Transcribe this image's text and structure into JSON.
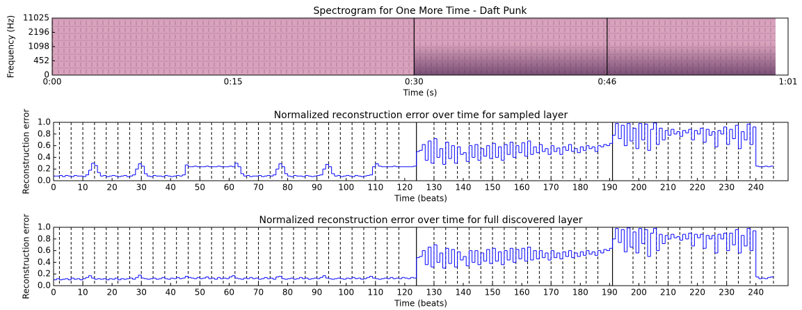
{
  "chart_data": [
    {
      "type": "spectrogram",
      "title": "Spectrogram for One More Time - Daft Punk",
      "xlabel": "Time (s)",
      "ylabel": "Frequency (Hz)",
      "xlim": [
        0,
        61
      ],
      "xticks": [
        {
          "value": 0,
          "label": "0:00"
        },
        {
          "value": 15,
          "label": "0:15"
        },
        {
          "value": 30,
          "label": "0:30"
        },
        {
          "value": 46,
          "label": "0:46"
        },
        {
          "value": 61,
          "label": "1:01"
        }
      ],
      "yticks": [
        0,
        452,
        1098,
        2196,
        11025
      ],
      "markers": [
        30,
        46
      ],
      "color": "#d9a3bd"
    },
    {
      "type": "step",
      "title": "Normalized reconstruction error over time for sampled layer",
      "xlabel": "Time (beats)",
      "ylabel": "Reconstruction error",
      "xlim": [
        0,
        251
      ],
      "ylim": [
        0,
        1
      ],
      "xticks": [
        0,
        10,
        20,
        30,
        40,
        50,
        60,
        70,
        80,
        90,
        100,
        110,
        120,
        130,
        140,
        150,
        160,
        170,
        180,
        190,
        200,
        210,
        220,
        230,
        240
      ],
      "yticks": [
        {
          "value": 0,
          "label": "0.0"
        },
        {
          "value": 0.2,
          "label": "0.2"
        },
        {
          "value": 0.4,
          "label": "0.4"
        },
        {
          "value": 0.6,
          "label": "0.6"
        },
        {
          "value": 0.8,
          "label": "0.8"
        },
        {
          "value": 1,
          "label": "1.0"
        }
      ],
      "markers": [
        124,
        191
      ],
      "dashed_lines": [
        2,
        6,
        10,
        14,
        18,
        22,
        26,
        30,
        34,
        38,
        42,
        46,
        50,
        54,
        58,
        62,
        66,
        70,
        74,
        78,
        82,
        86,
        90,
        94,
        98,
        102,
        106,
        110,
        114,
        118,
        130,
        134,
        138,
        142,
        146,
        150,
        154,
        158,
        162,
        166,
        170,
        174,
        178,
        182,
        186,
        198,
        202,
        206,
        210,
        214,
        218,
        222,
        226,
        230,
        234,
        238,
        242,
        246
      ],
      "color": "#0000ff",
      "x": [
        0,
        1,
        2,
        3,
        4,
        5,
        6,
        7,
        8,
        9,
        10,
        11,
        12,
        13,
        14,
        15,
        16,
        17,
        18,
        19,
        20,
        21,
        22,
        23,
        24,
        25,
        26,
        27,
        28,
        29,
        30,
        31,
        32,
        33,
        34,
        35,
        36,
        37,
        38,
        39,
        40,
        41,
        42,
        43,
        44,
        45,
        46,
        47,
        48,
        49,
        50,
        51,
        52,
        53,
        54,
        55,
        56,
        57,
        58,
        59,
        60,
        61,
        62,
        63,
        64,
        65,
        66,
        67,
        68,
        69,
        70,
        71,
        72,
        73,
        74,
        75,
        76,
        77,
        78,
        79,
        80,
        81,
        82,
        83,
        84,
        85,
        86,
        87,
        88,
        89,
        90,
        91,
        92,
        93,
        94,
        95,
        96,
        97,
        98,
        99,
        100,
        101,
        102,
        103,
        104,
        105,
        106,
        107,
        108,
        109,
        110,
        111,
        112,
        113,
        114,
        115,
        116,
        117,
        118,
        119,
        120,
        121,
        122,
        123,
        124,
        125,
        126,
        127,
        128,
        129,
        130,
        131,
        132,
        133,
        134,
        135,
        136,
        137,
        138,
        139,
        140,
        141,
        142,
        143,
        144,
        145,
        146,
        147,
        148,
        149,
        150,
        151,
        152,
        153,
        154,
        155,
        156,
        157,
        158,
        159,
        160,
        161,
        162,
        163,
        164,
        165,
        166,
        167,
        168,
        169,
        170,
        171,
        172,
        173,
        174,
        175,
        176,
        177,
        178,
        179,
        180,
        181,
        182,
        183,
        184,
        185,
        186,
        187,
        188,
        189,
        190,
        191,
        192,
        193,
        194,
        195,
        196,
        197,
        198,
        199,
        200,
        201,
        202,
        203,
        204,
        205,
        206,
        207,
        208,
        209,
        210,
        211,
        212,
        213,
        214,
        215,
        216,
        217,
        218,
        219,
        220,
        221,
        222,
        223,
        224,
        225,
        226,
        227,
        228,
        229,
        230,
        231,
        232,
        233,
        234,
        235,
        236,
        237,
        238,
        239,
        240,
        241,
        242,
        243,
        244,
        245
      ],
      "values": [
        0.08,
        0.08,
        0.09,
        0.07,
        0.09,
        0.08,
        0.07,
        0.09,
        0.08,
        0.08,
        0.07,
        0.1,
        0.18,
        0.3,
        0.26,
        0.14,
        0.08,
        0.09,
        0.07,
        0.08,
        0.09,
        0.08,
        0.07,
        0.08,
        0.09,
        0.07,
        0.08,
        0.1,
        0.2,
        0.29,
        0.25,
        0.12,
        0.08,
        0.07,
        0.09,
        0.08,
        0.08,
        0.07,
        0.09,
        0.08,
        0.07,
        0.08,
        0.09,
        0.08,
        0.1,
        0.27,
        0.24,
        0.24,
        0.25,
        0.24,
        0.24,
        0.24,
        0.25,
        0.24,
        0.24,
        0.24,
        0.25,
        0.24,
        0.24,
        0.24,
        0.25,
        0.24,
        0.3,
        0.24,
        0.12,
        0.08,
        0.09,
        0.07,
        0.08,
        0.08,
        0.09,
        0.07,
        0.08,
        0.09,
        0.08,
        0.1,
        0.2,
        0.29,
        0.24,
        0.12,
        0.08,
        0.07,
        0.09,
        0.08,
        0.08,
        0.07,
        0.09,
        0.08,
        0.07,
        0.08,
        0.09,
        0.1,
        0.2,
        0.28,
        0.24,
        0.12,
        0.08,
        0.09,
        0.07,
        0.08,
        0.09,
        0.08,
        0.07,
        0.09,
        0.08,
        0.07,
        0.08,
        0.09,
        0.1,
        0.24,
        0.29,
        0.25,
        0.24,
        0.24,
        0.24,
        0.24,
        0.25,
        0.24,
        0.24,
        0.24,
        0.24,
        0.24,
        0.24,
        0.25,
        0.5,
        0.52,
        0.62,
        0.35,
        0.68,
        0.3,
        0.72,
        0.4,
        0.55,
        0.28,
        0.66,
        0.38,
        0.6,
        0.3,
        0.58,
        0.45,
        0.48,
        0.33,
        0.6,
        0.4,
        0.62,
        0.35,
        0.55,
        0.42,
        0.6,
        0.38,
        0.64,
        0.4,
        0.58,
        0.35,
        0.62,
        0.45,
        0.66,
        0.4,
        0.6,
        0.48,
        0.65,
        0.42,
        0.68,
        0.45,
        0.58,
        0.48,
        0.62,
        0.5,
        0.55,
        0.45,
        0.6,
        0.5,
        0.56,
        0.45,
        0.58,
        0.52,
        0.62,
        0.5,
        0.55,
        0.48,
        0.58,
        0.52,
        0.6,
        0.55,
        0.58,
        0.5,
        0.6,
        0.58,
        0.62,
        0.6,
        0.64,
        0.78,
        0.98,
        0.72,
        0.95,
        0.6,
        0.98,
        0.68,
        0.9,
        0.55,
        0.98,
        0.7,
        0.97,
        0.52,
        0.88,
        0.99,
        0.62,
        0.9,
        0.7,
        0.86,
        0.78,
        0.88,
        0.8,
        0.84,
        0.76,
        0.86,
        0.82,
        0.88,
        0.7,
        0.86,
        0.8,
        0.9,
        0.66,
        0.88,
        0.78,
        0.84,
        0.58,
        0.86,
        0.8,
        0.92,
        0.62,
        0.88,
        0.72,
        0.95,
        0.55,
        0.84,
        0.7,
        0.97,
        0.62,
        0.92,
        0.25,
        0.24,
        0.24,
        0.25,
        0.24,
        0.25
      ]
    },
    {
      "type": "step",
      "title": "Normalized reconstruction error over time for full discovered layer",
      "xlabel": "Time (beats)",
      "ylabel": "Reconstruction error",
      "xlim": [
        0,
        251
      ],
      "ylim": [
        0,
        1
      ],
      "xticks": [
        0,
        10,
        20,
        30,
        40,
        50,
        60,
        70,
        80,
        90,
        100,
        110,
        120,
        130,
        140,
        150,
        160,
        170,
        180,
        190,
        200,
        210,
        220,
        230,
        240
      ],
      "yticks": [
        {
          "value": 0,
          "label": "0.0"
        },
        {
          "value": 0.2,
          "label": "0.2"
        },
        {
          "value": 0.4,
          "label": "0.4"
        },
        {
          "value": 0.6,
          "label": "0.6"
        },
        {
          "value": 0.8,
          "label": "0.8"
        },
        {
          "value": 1,
          "label": "1.0"
        }
      ],
      "markers": [
        124,
        191
      ],
      "dashed_lines": [
        2,
        6,
        10,
        14,
        18,
        22,
        26,
        30,
        34,
        38,
        42,
        46,
        50,
        54,
        58,
        62,
        66,
        70,
        74,
        78,
        82,
        86,
        90,
        94,
        98,
        102,
        106,
        110,
        114,
        118,
        130,
        134,
        138,
        142,
        146,
        150,
        154,
        158,
        162,
        166,
        170,
        174,
        178,
        182,
        186,
        198,
        202,
        206,
        210,
        214,
        218,
        222,
        226,
        230,
        234,
        238,
        242,
        246
      ],
      "color": "#0000ff",
      "x": [
        0,
        1,
        2,
        3,
        4,
        5,
        6,
        7,
        8,
        9,
        10,
        11,
        12,
        13,
        14,
        15,
        16,
        17,
        18,
        19,
        20,
        21,
        22,
        23,
        24,
        25,
        26,
        27,
        28,
        29,
        30,
        31,
        32,
        33,
        34,
        35,
        36,
        37,
        38,
        39,
        40,
        41,
        42,
        43,
        44,
        45,
        46,
        47,
        48,
        49,
        50,
        51,
        52,
        53,
        54,
        55,
        56,
        57,
        58,
        59,
        60,
        61,
        62,
        63,
        64,
        65,
        66,
        67,
        68,
        69,
        70,
        71,
        72,
        73,
        74,
        75,
        76,
        77,
        78,
        79,
        80,
        81,
        82,
        83,
        84,
        85,
        86,
        87,
        88,
        89,
        90,
        91,
        92,
        93,
        94,
        95,
        96,
        97,
        98,
        99,
        100,
        101,
        102,
        103,
        104,
        105,
        106,
        107,
        108,
        109,
        110,
        111,
        112,
        113,
        114,
        115,
        116,
        117,
        118,
        119,
        120,
        121,
        122,
        123,
        124,
        125,
        126,
        127,
        128,
        129,
        130,
        131,
        132,
        133,
        134,
        135,
        136,
        137,
        138,
        139,
        140,
        141,
        142,
        143,
        144,
        145,
        146,
        147,
        148,
        149,
        150,
        151,
        152,
        153,
        154,
        155,
        156,
        157,
        158,
        159,
        160,
        161,
        162,
        163,
        164,
        165,
        166,
        167,
        168,
        169,
        170,
        171,
        172,
        173,
        174,
        175,
        176,
        177,
        178,
        179,
        180,
        181,
        182,
        183,
        184,
        185,
        186,
        187,
        188,
        189,
        190,
        191,
        192,
        193,
        194,
        195,
        196,
        197,
        198,
        199,
        200,
        201,
        202,
        203,
        204,
        205,
        206,
        207,
        208,
        209,
        210,
        211,
        212,
        213,
        214,
        215,
        216,
        217,
        218,
        219,
        220,
        221,
        222,
        223,
        224,
        225,
        226,
        227,
        228,
        229,
        230,
        231,
        232,
        233,
        234,
        235,
        236,
        237,
        238,
        239,
        240,
        241,
        242,
        243,
        244,
        245
      ],
      "values": [
        0.1,
        0.12,
        0.1,
        0.11,
        0.12,
        0.1,
        0.13,
        0.11,
        0.12,
        0.1,
        0.12,
        0.14,
        0.17,
        0.13,
        0.11,
        0.12,
        0.11,
        0.12,
        0.1,
        0.12,
        0.11,
        0.13,
        0.1,
        0.12,
        0.11,
        0.12,
        0.13,
        0.11,
        0.14,
        0.18,
        0.13,
        0.12,
        0.11,
        0.12,
        0.13,
        0.11,
        0.12,
        0.14,
        0.12,
        0.11,
        0.13,
        0.12,
        0.14,
        0.12,
        0.13,
        0.16,
        0.14,
        0.13,
        0.12,
        0.14,
        0.12,
        0.13,
        0.15,
        0.12,
        0.13,
        0.11,
        0.14,
        0.12,
        0.13,
        0.12,
        0.15,
        0.17,
        0.13,
        0.12,
        0.11,
        0.13,
        0.12,
        0.14,
        0.12,
        0.13,
        0.11,
        0.12,
        0.14,
        0.12,
        0.13,
        0.11,
        0.15,
        0.16,
        0.12,
        0.11,
        0.12,
        0.13,
        0.11,
        0.12,
        0.14,
        0.12,
        0.13,
        0.11,
        0.12,
        0.13,
        0.12,
        0.14,
        0.17,
        0.13,
        0.12,
        0.11,
        0.12,
        0.13,
        0.12,
        0.11,
        0.13,
        0.12,
        0.14,
        0.12,
        0.13,
        0.11,
        0.12,
        0.14,
        0.16,
        0.13,
        0.12,
        0.11,
        0.12,
        0.13,
        0.12,
        0.14,
        0.12,
        0.13,
        0.12,
        0.14,
        0.13,
        0.12,
        0.14,
        0.13,
        0.48,
        0.5,
        0.6,
        0.36,
        0.66,
        0.32,
        0.7,
        0.4,
        0.56,
        0.3,
        0.64,
        0.38,
        0.62,
        0.32,
        0.58,
        0.44,
        0.5,
        0.34,
        0.6,
        0.4,
        0.6,
        0.36,
        0.56,
        0.42,
        0.62,
        0.38,
        0.64,
        0.42,
        0.58,
        0.36,
        0.6,
        0.44,
        0.64,
        0.4,
        0.62,
        0.46,
        0.64,
        0.42,
        0.66,
        0.44,
        0.6,
        0.46,
        0.6,
        0.48,
        0.56,
        0.44,
        0.6,
        0.48,
        0.56,
        0.46,
        0.58,
        0.5,
        0.6,
        0.48,
        0.56,
        0.5,
        0.58,
        0.52,
        0.6,
        0.54,
        0.58,
        0.52,
        0.6,
        0.56,
        0.62,
        0.6,
        0.64,
        0.8,
        0.98,
        0.74,
        0.96,
        0.58,
        0.99,
        0.66,
        0.92,
        0.56,
        0.98,
        0.72,
        0.96,
        0.5,
        0.9,
        0.98,
        0.6,
        0.88,
        0.72,
        0.86,
        0.8,
        0.88,
        0.82,
        0.84,
        0.78,
        0.88,
        0.8,
        0.9,
        0.68,
        0.88,
        0.82,
        0.88,
        0.64,
        0.86,
        0.8,
        0.86,
        0.56,
        0.88,
        0.8,
        0.9,
        0.6,
        0.9,
        0.7,
        0.96,
        0.56,
        0.86,
        0.68,
        0.98,
        0.6,
        0.94,
        0.15,
        0.12,
        0.13,
        0.12,
        0.14,
        0.15
      ]
    }
  ]
}
